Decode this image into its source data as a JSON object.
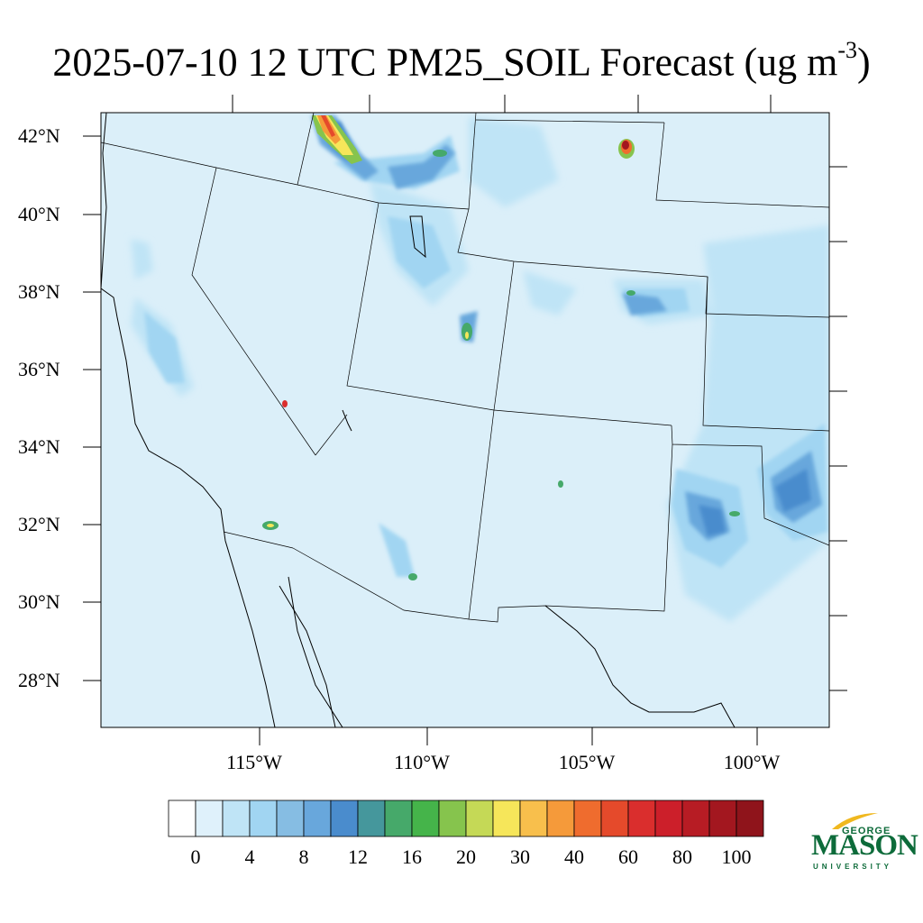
{
  "title": {
    "main": "2025-07-10 12 UTC PM25_SOIL Forecast (ug m",
    "exponent": "-3",
    "close": ")"
  },
  "map": {
    "projection": "lambert-conformal",
    "lat_labels": [
      "42°N",
      "40°N",
      "38°N",
      "36°N",
      "34°N",
      "32°N",
      "30°N",
      "28°N"
    ],
    "lon_labels": [
      "115°W",
      "110°W",
      "105°W",
      "100°W"
    ],
    "background_fill": "#dbeff9",
    "hotspots": [
      {
        "name": "idaho-plume",
        "level": 40
      },
      {
        "name": "wyoming-peak",
        "level": 100
      },
      {
        "name": "utah-basin",
        "level": 20
      },
      {
        "name": "texas-panhandle",
        "level": 12
      }
    ]
  },
  "colorbar": {
    "colors": [
      "#ffffff",
      "#dff1fb",
      "#bfe4f6",
      "#a1d5f2",
      "#86bde3",
      "#68a7dc",
      "#4a8ccd",
      "#45979c",
      "#46a96a",
      "#45b44a",
      "#86c44d",
      "#c5d956",
      "#f6e65a",
      "#f8bf4c",
      "#f59a3a",
      "#ef6c2e",
      "#e54a2b",
      "#da2e2d",
      "#cc1f2a",
      "#b71c24",
      "#a3171f",
      "#8f141b"
    ],
    "labels": [
      "0",
      "4",
      "8",
      "12",
      "16",
      "20",
      "30",
      "40",
      "60",
      "80",
      "100"
    ]
  },
  "logo": {
    "line1": "GEORGE",
    "line2": "MASON",
    "line3": "UNIVERSITY"
  }
}
